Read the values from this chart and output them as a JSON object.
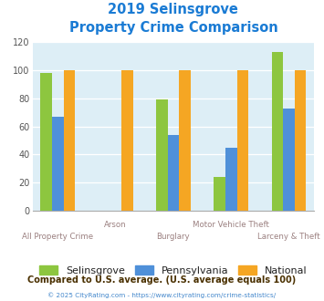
{
  "title_line1": "2019 Selinsgrove",
  "title_line2": "Property Crime Comparison",
  "categories": [
    "All Property Crime",
    "Arson",
    "Burglary",
    "Motor Vehicle Theft",
    "Larceny & Theft"
  ],
  "series": {
    "Selinsgrove": [
      98,
      0,
      79,
      24,
      113
    ],
    "Pennsylvania": [
      67,
      0,
      54,
      45,
      73
    ],
    "National": [
      100,
      100,
      100,
      100,
      100
    ]
  },
  "colors": {
    "Selinsgrove": "#8dc63f",
    "Pennsylvania": "#4f90d9",
    "National": "#f5a623"
  },
  "ylim": [
    0,
    120
  ],
  "yticks": [
    0,
    20,
    40,
    60,
    80,
    100,
    120
  ],
  "plot_bg": "#ddeef6",
  "title_color": "#1a7bd4",
  "xlabel_color": "#9b8080",
  "legend_labels": [
    "Selinsgrove",
    "Pennsylvania",
    "National"
  ],
  "footnote1": "Compared to U.S. average. (U.S. average equals 100)",
  "footnote2": "© 2025 CityRating.com - https://www.cityrating.com/crime-statistics/",
  "footnote1_color": "#4a3000",
  "footnote2_color": "#4488cc"
}
